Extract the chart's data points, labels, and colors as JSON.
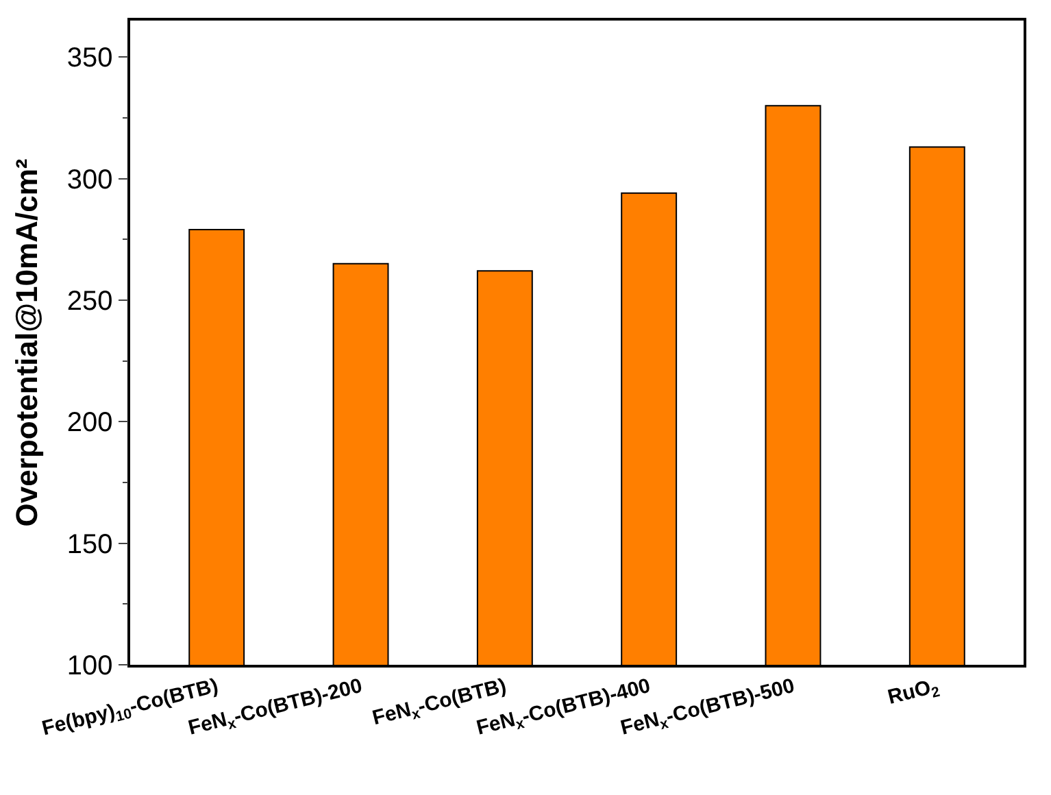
{
  "chart_data": {
    "type": "bar",
    "ylabel": "Overpotential@10mA/cm²",
    "categories": [
      "Fe(bpy)$_{10}$-Co(BTB)",
      "FeN$_{x}$-Co(BTB)-200",
      "FeN$_{x}$-Co(BTB)",
      "FeN$_{x}$-Co(BTB)-400",
      "FeN$_{x}$-Co(BTB)-500",
      "RuO$_{2}$"
    ],
    "values": [
      279,
      265,
      262,
      294,
      330,
      313
    ],
    "color": "#ff7f00",
    "ylim": [
      100,
      365
    ],
    "yticks": [
      100,
      150,
      200,
      250,
      300,
      350
    ]
  }
}
